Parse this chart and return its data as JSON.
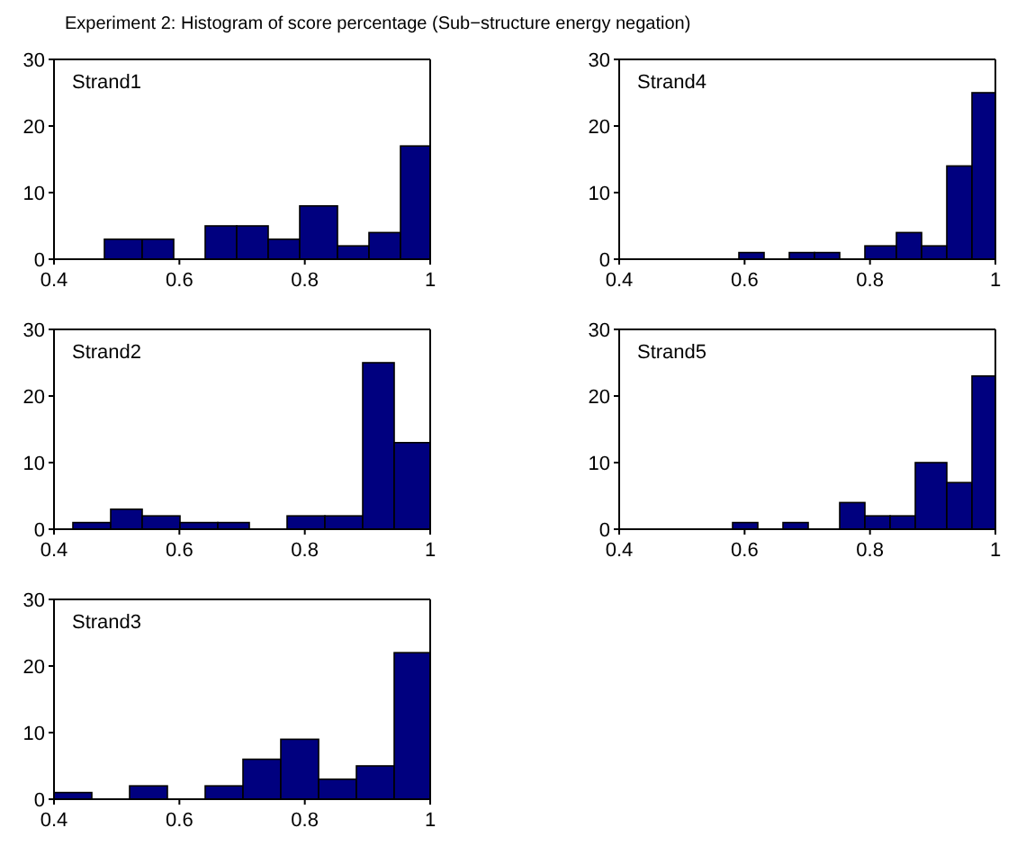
{
  "chart_data": [
    {
      "type": "histogram",
      "title": "Strand1",
      "annotations": [
        "Experiment 2: Histogram of score percentage (Sub−structure energy negation)"
      ],
      "bins": [
        0.48,
        0.54,
        0.59,
        0.64,
        0.69,
        0.74,
        0.79,
        0.85,
        0.9,
        0.95,
        1
      ],
      "values": [
        3,
        3,
        0,
        5,
        5,
        3,
        8,
        2,
        4,
        17
      ],
      "color": "#00007f",
      "xlim": [
        0.4,
        1
      ],
      "xticks": [
        0.4,
        0.6,
        0.8,
        1
      ],
      "ylim": [
        0,
        30
      ],
      "yticks": [
        0,
        10,
        20,
        30
      ]
    },
    {
      "type": "histogram",
      "title": "Strand4",
      "bins": [
        0.59,
        0.63,
        0.67,
        0.71,
        0.75,
        0.79,
        0.84,
        0.88,
        0.92,
        0.96,
        1
      ],
      "values": [
        1,
        0,
        1,
        1,
        0,
        2,
        4,
        2,
        14,
        25
      ],
      "color": "#00007f",
      "xlim": [
        0.4,
        1
      ],
      "xticks": [
        0.4,
        0.6,
        0.8,
        1
      ],
      "ylim": [
        0,
        30
      ],
      "yticks": [
        0,
        10,
        20,
        30
      ]
    },
    {
      "type": "histogram",
      "title": "Strand2",
      "bins": [
        0.43,
        0.49,
        0.54,
        0.6,
        0.66,
        0.71,
        0.77,
        0.83,
        0.89,
        0.94,
        1
      ],
      "values": [
        1,
        3,
        2,
        1,
        1,
        0,
        2,
        2,
        25,
        13
      ],
      "color": "#00007f",
      "xlim": [
        0.4,
        1
      ],
      "xticks": [
        0.4,
        0.6,
        0.8,
        1
      ],
      "ylim": [
        0,
        30
      ],
      "yticks": [
        0,
        10,
        20,
        30
      ]
    },
    {
      "type": "histogram",
      "title": "Strand5",
      "bins": [
        0.58,
        0.62,
        0.66,
        0.7,
        0.75,
        0.79,
        0.83,
        0.87,
        0.92,
        0.96,
        1
      ],
      "values": [
        1,
        0,
        1,
        0,
        4,
        2,
        2,
        10,
        7,
        23
      ],
      "color": "#00007f",
      "xlim": [
        0.4,
        1
      ],
      "xticks": [
        0.4,
        0.6,
        0.8,
        1
      ],
      "ylim": [
        0,
        30
      ],
      "yticks": [
        0,
        10,
        20,
        30
      ]
    },
    {
      "type": "histogram",
      "title": "Strand3",
      "bins": [
        0.4,
        0.46,
        0.52,
        0.58,
        0.64,
        0.7,
        0.76,
        0.82,
        0.88,
        0.94,
        1
      ],
      "values": [
        1,
        0,
        2,
        0,
        2,
        6,
        9,
        3,
        5,
        22
      ],
      "color": "#00007f",
      "xlim": [
        0.4,
        1
      ],
      "xticks": [
        0.4,
        0.6,
        0.8,
        1
      ],
      "ylim": [
        0,
        30
      ],
      "yticks": [
        0,
        10,
        20,
        30
      ]
    }
  ]
}
